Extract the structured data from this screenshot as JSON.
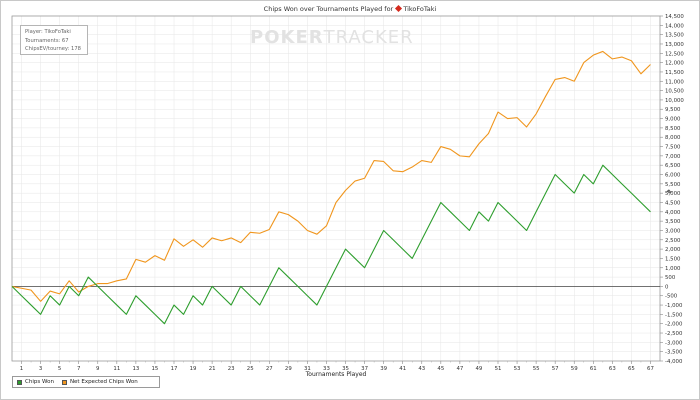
{
  "title": {
    "prefix": "Chips Won over Tournaments Played for",
    "player": "TikoFoTaki"
  },
  "info_box": {
    "line1": "Player: TikoFoTaki",
    "line2": "Tournaments: 67",
    "line3": "ChipsEV/tourney: 178"
  },
  "watermark": {
    "bold": "POKER",
    "light": "TRACKER"
  },
  "colors": {
    "chips_won": "#2e9e2e",
    "net_expected": "#f0961e",
    "zero_line": "#444444",
    "grid": "#e6e6e6"
  },
  "legend": {
    "chips_won": "Chips Won",
    "net_expected": "Net Expected Chips Won"
  },
  "chart_data": {
    "type": "line",
    "title": "Chips Won over Tournaments Played for TikoFoTaki",
    "xlabel": "Tournaments Played",
    "ylabel": "#",
    "xlim": [
      0,
      68
    ],
    "ylim": [
      -4000,
      14500
    ],
    "x_ticks": [
      1,
      3,
      5,
      7,
      9,
      11,
      13,
      15,
      17,
      19,
      21,
      23,
      25,
      27,
      29,
      31,
      33,
      35,
      37,
      39,
      41,
      43,
      45,
      47,
      49,
      51,
      53,
      55,
      57,
      59,
      61,
      63,
      65,
      67
    ],
    "y_ticks": [
      -4000,
      -3500,
      -3000,
      -2500,
      -2000,
      -1500,
      -1000,
      -500,
      0,
      500,
      1000,
      1500,
      2000,
      2500,
      3000,
      3500,
      4000,
      4500,
      5000,
      5500,
      6000,
      6500,
      7000,
      7500,
      8000,
      8500,
      9000,
      9500,
      10000,
      10500,
      11000,
      11500,
      12000,
      12500,
      13000,
      13500,
      14000,
      14500
    ],
    "y_tick_labels": [
      "-4,000",
      "-3,500",
      "-3,000",
      "-2,500",
      "-2,000",
      "-1,500",
      "-1,000",
      "-500",
      "0",
      "500",
      "1,000",
      "1,500",
      "2,000",
      "2,500",
      "3,000",
      "3,500",
      "4,000",
      "4,500",
      "5,000",
      "5,500",
      "6,000",
      "6,500",
      "7,000",
      "7,500",
      "8,000",
      "8,500",
      "9,000",
      "9,500",
      "10,000",
      "10,500",
      "11,000",
      "11,500",
      "12,000",
      "12,500",
      "13,000",
      "13,500",
      "14,000",
      "14,500"
    ],
    "series": [
      {
        "name": "Chips Won",
        "x": [
          0,
          1,
          2,
          3,
          4,
          5,
          6,
          7,
          8,
          9,
          10,
          11,
          12,
          13,
          14,
          15,
          16,
          17,
          18,
          19,
          20,
          21,
          22,
          23,
          24,
          25,
          26,
          27,
          28,
          29,
          30,
          31,
          32,
          33,
          34,
          35,
          36,
          37,
          38,
          39,
          40,
          41,
          42,
          43,
          44,
          45,
          46,
          47,
          48,
          49,
          50,
          51,
          52,
          53,
          54,
          55,
          56,
          57,
          58,
          59,
          60,
          61,
          62,
          63,
          64,
          65,
          66,
          67
        ],
        "values": [
          0,
          -500,
          -1000,
          -1500,
          -500,
          -1000,
          0,
          -500,
          500,
          0,
          -500,
          -1000,
          -1500,
          -500,
          -1000,
          -1500,
          -2000,
          -1000,
          -1500,
          -500,
          -1000,
          0,
          -500,
          -1000,
          0,
          -500,
          -1000,
          0,
          1000,
          500,
          0,
          -500,
          -1000,
          0,
          1000,
          2000,
          1500,
          1000,
          2000,
          3000,
          2500,
          2000,
          1500,
          2500,
          3500,
          4500,
          4000,
          3500,
          3000,
          4000,
          3500,
          4500,
          4000,
          3500,
          3000,
          4000,
          5000,
          6000,
          5500,
          5000,
          6000,
          5500,
          6500,
          6000,
          5500,
          5000,
          4500,
          4000
        ]
      },
      {
        "name": "Net Expected Chips Won",
        "x": [
          0,
          1,
          2,
          3,
          4,
          5,
          6,
          7,
          8,
          9,
          10,
          11,
          12,
          13,
          14,
          15,
          16,
          17,
          18,
          19,
          20,
          21,
          22,
          23,
          24,
          25,
          26,
          27,
          28,
          29,
          30,
          31,
          32,
          33,
          34,
          35,
          36,
          37,
          38,
          39,
          40,
          41,
          42,
          43,
          44,
          45,
          46,
          47,
          48,
          49,
          50,
          51,
          52,
          53,
          54,
          55,
          56,
          57,
          58,
          59,
          60,
          61,
          62,
          63,
          64,
          65,
          66,
          67
        ],
        "values": [
          0,
          -100,
          -200,
          -800,
          -250,
          -400,
          300,
          -300,
          0,
          150,
          150,
          300,
          400,
          1450,
          1300,
          1650,
          1400,
          2550,
          2150,
          2500,
          2100,
          2600,
          2450,
          2600,
          2350,
          2900,
          2850,
          3050,
          4000,
          3850,
          3500,
          3000,
          2800,
          3250,
          4500,
          5150,
          5650,
          5800,
          6750,
          6700,
          6200,
          6150,
          6400,
          6750,
          6650,
          7500,
          7350,
          7000,
          6950,
          7650,
          8200,
          9350,
          9000,
          9050,
          8550,
          9250,
          10200,
          11100,
          11200,
          11000,
          12000,
          12400,
          12600,
          12200,
          12300,
          12100,
          11400,
          11900
        ]
      }
    ]
  }
}
